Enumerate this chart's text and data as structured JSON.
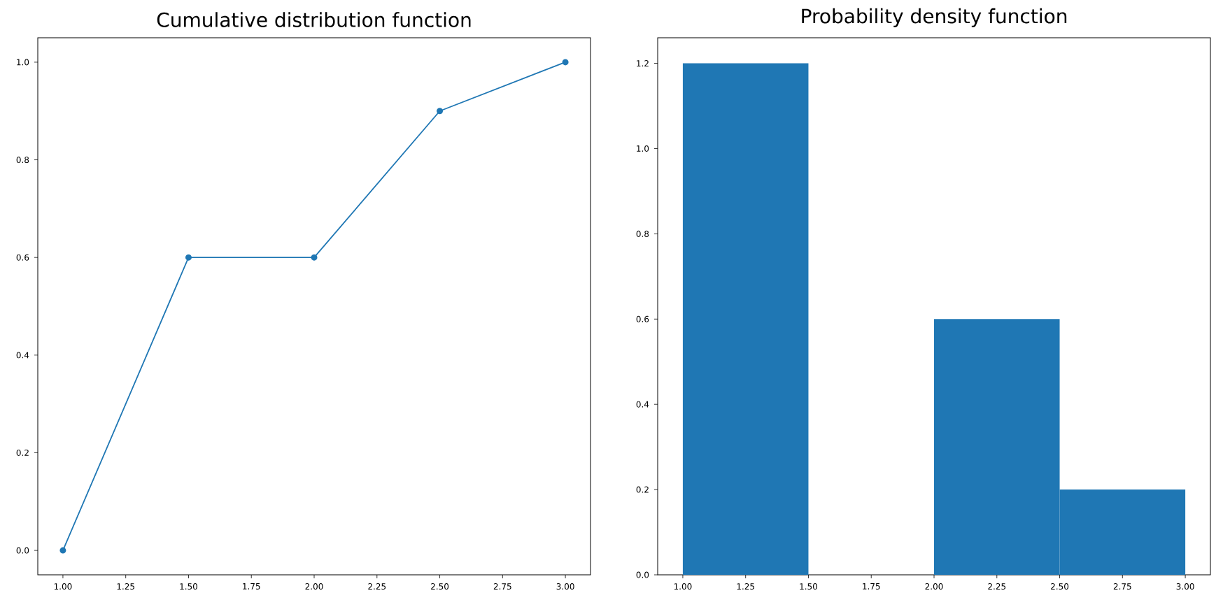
{
  "chart_data": [
    {
      "type": "line",
      "title": "Cumulative distribution function",
      "x": [
        1,
        1.5,
        2,
        2.5,
        3
      ],
      "values": [
        0,
        0.6,
        0.6,
        0.9,
        1.0
      ],
      "color": "#1f77b4",
      "marker": "circle",
      "xlim": [
        0.9,
        3.1
      ],
      "ylim": [
        -0.05,
        1.05
      ],
      "xticks": [
        {
          "value": 1,
          "label": "1.00"
        },
        {
          "value": 1.25,
          "label": "1.25"
        },
        {
          "value": 1.5,
          "label": "1.50"
        },
        {
          "value": 1.75,
          "label": "1.75"
        },
        {
          "value": 2,
          "label": "2.00"
        },
        {
          "value": 2.25,
          "label": "2.25"
        },
        {
          "value": 2.5,
          "label": "2.50"
        },
        {
          "value": 2.75,
          "label": "2.75"
        },
        {
          "value": 3,
          "label": "3.00"
        }
      ],
      "yticks": [
        {
          "value": 0,
          "label": "0.0"
        },
        0.2,
        0.4,
        0.6,
        0.8,
        {
          "value": 1,
          "label": "1.0"
        }
      ]
    },
    {
      "type": "histogram",
      "title": "Probability density function",
      "bins": [
        1,
        1.5,
        2,
        2.5,
        3
      ],
      "values": [
        1.2,
        0,
        0.6,
        0.2
      ],
      "color": "#1f77b4",
      "xlim": [
        0.9,
        3.1
      ],
      "ylim": [
        0,
        1.26
      ],
      "xticks": [
        {
          "value": 1,
          "label": "1.00"
        },
        {
          "value": 1.25,
          "label": "1.25"
        },
        {
          "value": 1.5,
          "label": "1.50"
        },
        {
          "value": 1.75,
          "label": "1.75"
        },
        {
          "value": 2,
          "label": "2.00"
        },
        {
          "value": 2.25,
          "label": "2.25"
        },
        {
          "value": 2.5,
          "label": "2.50"
        },
        {
          "value": 2.75,
          "label": "2.75"
        },
        {
          "value": 3,
          "label": "3.00"
        }
      ],
      "yticks": [
        {
          "value": 0,
          "label": "0.0"
        },
        0.2,
        0.4,
        0.6,
        0.8,
        {
          "value": 1,
          "label": "1.0"
        },
        {
          "value": 1.2,
          "label": "1.2"
        }
      ]
    }
  ]
}
